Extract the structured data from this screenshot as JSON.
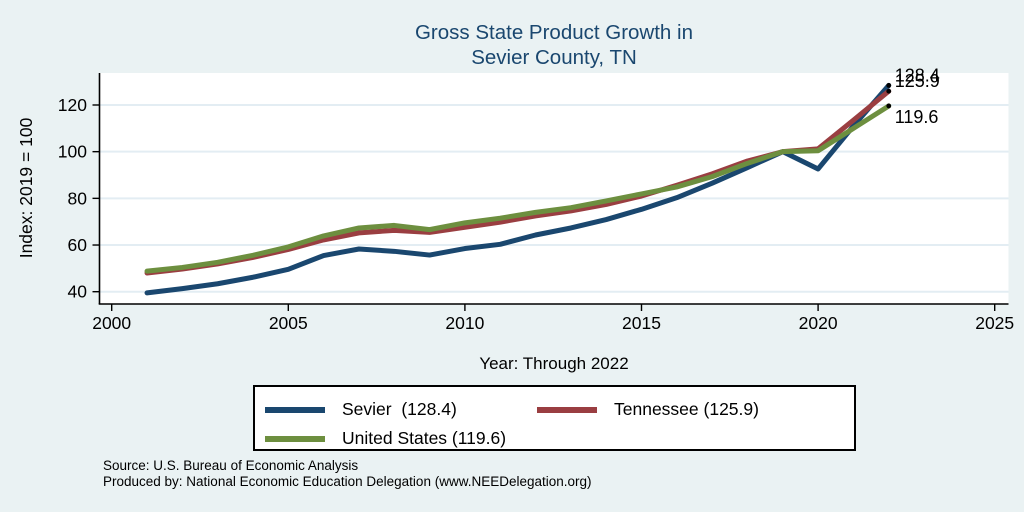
{
  "title": {
    "line1": "Gross State Product Growth in",
    "line2": "Sevier County, TN"
  },
  "axes": {
    "y_label": "Index: 2019 = 100",
    "x_label": "Year: Through 2022"
  },
  "legend": {
    "items": [
      {
        "label": "Sevier  (128.4)"
      },
      {
        "label": "Tennessee (125.9)"
      },
      {
        "label": "United States (119.6)"
      }
    ]
  },
  "footer": {
    "source": "Source: U.S. Bureau of Economic Analysis",
    "produced_by": "Produced by: National Economic Education Delegation (www.NEEDelegation.org)"
  },
  "colors": {
    "background": "#eaf2f3",
    "plot_background": "#ffffff",
    "gridline": "#e3edf3",
    "title_text": "#1a476f",
    "axis_text": "#000000",
    "sevier_line": "#1a476f",
    "tennessee_line": "#9a3e41",
    "us_line": "#6d8f3f"
  },
  "chart_data": {
    "type": "line",
    "title": "Gross State Product Growth in Sevier County, TN",
    "xlabel": "Year: Through 2022",
    "ylabel": "Index: 2019 = 100",
    "grid": "horizontal",
    "legend_position": "bottom",
    "xlim": [
      1999.65,
      2025.4
    ],
    "ylim": [
      34.7,
      133.7
    ],
    "x_ticks": [
      2000,
      2005,
      2010,
      2015,
      2020,
      2025
    ],
    "y_ticks": [
      40,
      60,
      80,
      100,
      120
    ],
    "x": [
      2001,
      2002,
      2003,
      2004,
      2005,
      2006,
      2007,
      2008,
      2009,
      2010,
      2011,
      2012,
      2013,
      2014,
      2015,
      2016,
      2017,
      2018,
      2019,
      2020,
      2021,
      2022
    ],
    "series": [
      {
        "name": "Sevier",
        "end_label": "128.4",
        "color": "#1a476f",
        "values": [
          39.5,
          41.3,
          43.4,
          46.2,
          49.6,
          55.5,
          58.3,
          57.3,
          55.7,
          58.5,
          60.3,
          64.3,
          67.3,
          70.9,
          75.3,
          80.3,
          86.5,
          93.2,
          100,
          92.6,
          111,
          128.4
        ]
      },
      {
        "name": "Tennessee",
        "end_label": "125.9",
        "color": "#9a3e41",
        "values": [
          48,
          49.7,
          51.9,
          54.7,
          58.1,
          62.2,
          65.2,
          66.3,
          65.4,
          67.6,
          69.8,
          72.5,
          74.6,
          77.4,
          81,
          85.6,
          90.5,
          96,
          100,
          101.2,
          113.5,
          125.9
        ]
      },
      {
        "name": "United States",
        "end_label": "119.6",
        "color": "#6d8f3f",
        "values": [
          48.8,
          50.4,
          52.6,
          55.6,
          59.2,
          63.9,
          67.3,
          68.4,
          66.6,
          69.5,
          71.5,
          74,
          76,
          78.9,
          81.9,
          84.9,
          89.3,
          95,
          100,
          100.4,
          110,
          119.6
        ]
      }
    ]
  }
}
